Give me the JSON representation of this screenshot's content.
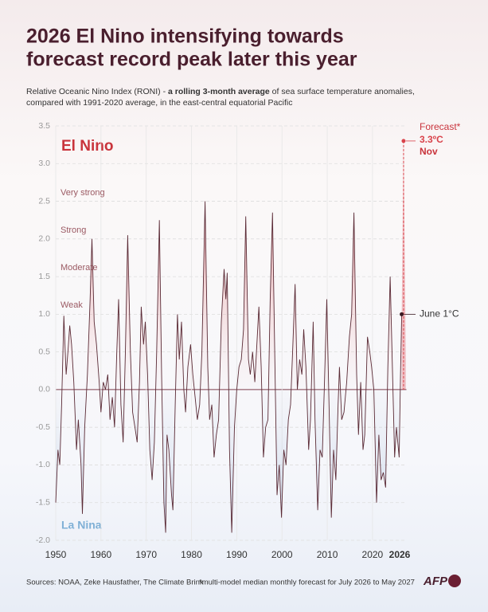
{
  "chart_data": {
    "type": "line",
    "title": [
      "2026 El Nino intensifying towards",
      "forecast record peak later this year"
    ],
    "subtitle": [
      [
        {
          "text": "Relative Oceanic Nino Index (RONI) - "
        },
        {
          "text": "a rolling 3-month average",
          "bold": true
        },
        {
          "text": " of sea surface temperature anomalies,"
        }
      ],
      [
        {
          "text": "compared with 1991-2020 average, in the east-central equatorial Pacific"
        }
      ]
    ],
    "el_nino_label": "El Nino",
    "la_nina_label": "La Nina",
    "intensity_labels": [
      "Very strong",
      "Strong",
      "Moderate",
      "Weak"
    ],
    "xlim": [
      1950,
      2027.5
    ],
    "ylim": [
      -2,
      3.5
    ],
    "xticks": [
      1950,
      1960,
      1970,
      1980,
      1990,
      2000,
      2010,
      2020,
      2026
    ],
    "yticks": [
      {
        "value": -2,
        "label": "-2.0"
      },
      -1.5,
      {
        "value": -1,
        "label": "-1.0"
      },
      -0.5,
      {
        "value": 0,
        "label": "0.0"
      },
      0.5,
      {
        "value": 1,
        "label": "1.0"
      },
      1.5,
      {
        "value": 2,
        "label": "2.0"
      },
      2.5,
      {
        "value": 3,
        "label": "3.0"
      },
      3.5
    ],
    "grid": true,
    "series": [
      {
        "color": "#5a2a35",
        "x": [
          1950.0,
          1950.5,
          1950.9,
          1951.3,
          1951.8,
          1952.3,
          1952.7,
          1953.1,
          1953.5,
          1954.0,
          1954.6,
          1955.0,
          1955.6,
          1955.9,
          1956.4,
          1957.0,
          1957.6,
          1958.0,
          1958.5,
          1959.0,
          1959.6,
          1960.0,
          1960.5,
          1961.0,
          1961.5,
          1962.0,
          1962.5,
          1963.0,
          1963.5,
          1963.9,
          1964.4,
          1964.9,
          1965.4,
          1965.9,
          1966.5,
          1967.0,
          1967.5,
          1968.0,
          1968.5,
          1968.9,
          1969.4,
          1969.8,
          1970.3,
          1970.8,
          1971.3,
          1971.8,
          1972.3,
          1972.9,
          1973.4,
          1973.9,
          1974.3,
          1974.6,
          1975.0,
          1975.6,
          1975.9,
          1976.4,
          1976.9,
          1977.3,
          1977.8,
          1978.3,
          1978.7,
          1979.2,
          1979.8,
          1980.3,
          1980.8,
          1981.3,
          1981.8,
          1982.3,
          1983.0,
          1983.6,
          1984.0,
          1984.5,
          1985.0,
          1985.5,
          1986.0,
          1986.6,
          1987.2,
          1987.6,
          1987.9,
          1988.4,
          1988.9,
          1989.5,
          1990.0,
          1990.5,
          1991.0,
          1991.5,
          1992.0,
          1992.6,
          1993.0,
          1993.5,
          1994.0,
          1994.9,
          1995.4,
          1995.9,
          1996.4,
          1996.9,
          1997.4,
          1997.9,
          1998.4,
          1998.9,
          1999.4,
          1999.9,
          2000.4,
          2000.9,
          2001.4,
          2001.9,
          2002.4,
          2002.9,
          2003.4,
          2003.9,
          2004.4,
          2004.8,
          2005.3,
          2005.9,
          2006.3,
          2006.9,
          2007.3,
          2007.9,
          2008.4,
          2008.9,
          2009.4,
          2009.9,
          2010.4,
          2010.9,
          2011.4,
          2011.9,
          2012.4,
          2012.7,
          2013.2,
          2013.7,
          2014.3,
          2014.9,
          2015.4,
          2015.9,
          2016.5,
          2016.9,
          2017.4,
          2017.9,
          2018.3,
          2018.9,
          2019.4,
          2019.8,
          2020.3,
          2020.9,
          2021.4,
          2021.9,
          2022.4,
          2022.9,
          2023.4,
          2023.9,
          2024.4,
          2024.9,
          2025.3,
          2025.9,
          2026.2,
          2026.45
        ],
        "values": [
          -1.5,
          -0.8,
          -1.0,
          -0.2,
          0.98,
          0.2,
          0.5,
          0.85,
          0.6,
          0.1,
          -0.8,
          -0.4,
          -1.0,
          -1.65,
          -0.5,
          0.2,
          1.2,
          2.0,
          0.9,
          0.6,
          0.1,
          -0.3,
          0.1,
          0.0,
          0.2,
          -0.4,
          -0.1,
          -0.5,
          0.5,
          1.2,
          -0.2,
          -0.7,
          0.5,
          2.05,
          0.5,
          -0.3,
          -0.5,
          -0.7,
          0.1,
          1.1,
          0.6,
          0.9,
          0.2,
          -0.8,
          -1.2,
          -0.7,
          0.5,
          2.25,
          0.2,
          -1.5,
          -1.9,
          -0.6,
          -0.8,
          -1.4,
          -1.6,
          -0.2,
          1.0,
          0.4,
          0.9,
          0.0,
          -0.3,
          0.3,
          0.6,
          0.2,
          -0.1,
          -0.4,
          -0.2,
          0.5,
          2.5,
          0.3,
          -0.4,
          -0.2,
          -0.9,
          -0.6,
          -0.4,
          0.9,
          1.6,
          1.2,
          1.55,
          -0.8,
          -1.9,
          -0.5,
          0.0,
          0.3,
          0.4,
          0.8,
          2.3,
          0.4,
          0.2,
          0.5,
          0.1,
          1.1,
          0.3,
          -0.9,
          -0.5,
          -0.4,
          1.2,
          2.35,
          0.5,
          -1.4,
          -1.0,
          -1.7,
          -0.8,
          -1.0,
          -0.4,
          -0.2,
          0.6,
          1.4,
          0.0,
          0.4,
          0.2,
          0.8,
          0.3,
          -0.8,
          -0.4,
          0.9,
          -0.4,
          -1.6,
          -0.8,
          -0.9,
          0.1,
          1.2,
          -0.2,
          -1.7,
          -0.8,
          -1.2,
          -0.2,
          0.3,
          -0.4,
          -0.3,
          0.1,
          0.7,
          1.0,
          2.35,
          0.2,
          -0.6,
          0.1,
          -0.8,
          -0.6,
          0.7,
          0.5,
          0.3,
          0.0,
          -1.5,
          -0.6,
          -1.2,
          -1.1,
          -1.3,
          0.3,
          1.5,
          0.3,
          -0.9,
          -0.5,
          -0.9,
          0.2,
          1.0
        ]
      },
      {
        "color": "#d9434b",
        "dashed": true,
        "x": [
          2026.45,
          2026.87,
          2027.37
        ],
        "values": [
          1.0,
          3.3,
          0.4
        ],
        "value_labels": [
          "June 1°C",
          "3.3ºC",
          null
        ]
      }
    ],
    "forecast_label": "Forecast*",
    "forecast_peak_month": "Nov",
    "sources": "Sources: NOAA, Zeke Hausfather, The Climate Brink",
    "footnote": "*multi-model median monthly forecast for July 2026 to May 2027",
    "logo": "AFP"
  }
}
